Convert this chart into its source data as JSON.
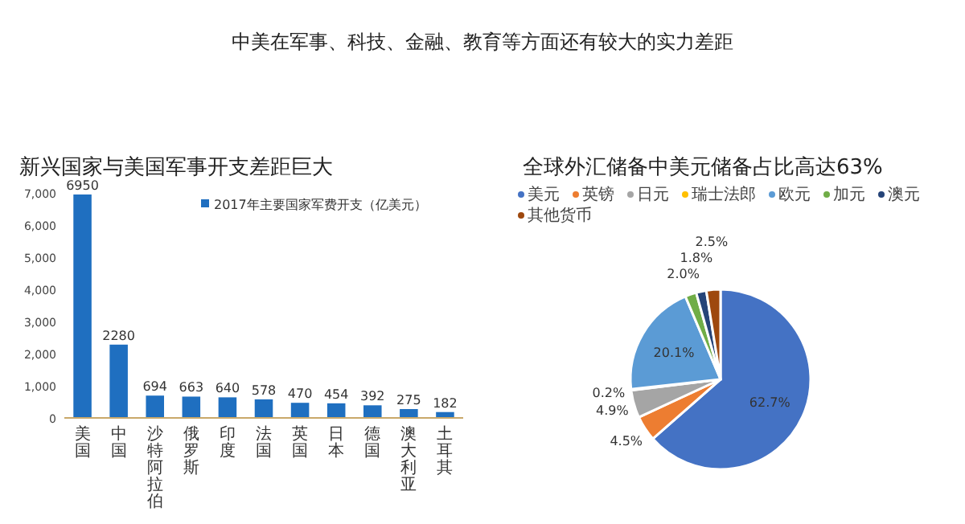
{
  "chart_data": [
    {
      "type": "bar",
      "title": "新兴国家与美国军事开支差距巨大",
      "annotations": [
        "中美在军事、科技、金融、教育等方面还有较大的实力差距"
      ],
      "categories": [
        "美国",
        "中国",
        "沙特阿拉伯",
        "俄罗斯",
        "印度",
        "法国",
        "英国",
        "日本",
        "德国",
        "澳大利亚",
        "土耳其"
      ],
      "series": [
        {
          "name": "2017年主要国家军费开支（亿美元）",
          "color": "#1f6fc0",
          "values": [
            6950,
            2280,
            694,
            663,
            640,
            578,
            470,
            454,
            392,
            275,
            182
          ]
        }
      ],
      "ylim": [
        0,
        7000
      ],
      "yticks": [
        0,
        {
          "value": 1000,
          "label": "1,000"
        },
        {
          "value": 2000,
          "label": "2,000"
        },
        {
          "value": 3000,
          "label": "3,000"
        },
        {
          "value": 4000,
          "label": "4,000"
        },
        {
          "value": 5000,
          "label": "5,000"
        },
        {
          "value": 6000,
          "label": "6,000"
        },
        {
          "value": 7000,
          "label": "7,000"
        }
      ],
      "data_labels": true,
      "legend": "top right",
      "grid": false
    },
    {
      "type": "pie",
      "title": "全球外汇储备中美元储备占比高达63%",
      "categories": [
        "美元",
        "英镑",
        "日元",
        "瑞士法郎",
        "欧元",
        "加元",
        "澳元",
        "其他货币"
      ],
      "values": [
        62.7,
        4.5,
        4.9,
        0.2,
        20.1,
        2.0,
        1.8,
        2.5
      ],
      "value_labels": [
        "62.7%",
        "4.5%",
        "4.9%",
        "0.2%",
        "20.1%",
        "2.0%",
        "1.8%",
        "2.5%"
      ],
      "colors": [
        "#4472c4",
        "#ed7d31",
        "#a5a5a5",
        "#ffc000",
        "#5b9bd5",
        "#70ad47",
        "#264478",
        "#9e480e"
      ],
      "legend": "top"
    }
  ]
}
